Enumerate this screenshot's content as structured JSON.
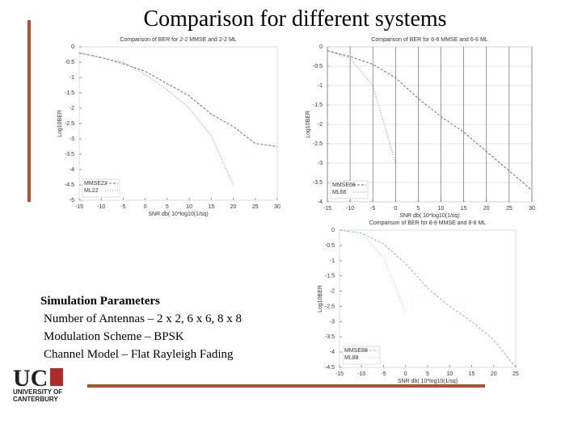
{
  "slide": {
    "title": "Comparison for different systems",
    "params_heading": "Simulation Parameters",
    "params": [
      "Number of Antennas – 2 x 2, 6 x 6, 8 x 8",
      "Modulation Scheme – BPSK",
      "Channel Model – Flat Rayleigh Fading"
    ],
    "logo": {
      "mark": "UC",
      "name": [
        "UNIVERSITY OF",
        "CANTERBURY"
      ]
    }
  },
  "chart_data": [
    {
      "type": "line",
      "title": "Comparison of BER for 2-2 MMSE and 2-2 ML",
      "xlabel": "SNR db( 10*log10(1/sq)",
      "ylabel": "Log10BER",
      "x": [
        -15,
        -10,
        -5,
        0,
        5,
        10,
        15,
        20,
        25,
        30
      ],
      "series": [
        {
          "name": "MMSE22",
          "color": "#5a6fb0",
          "values": [
            -0.2,
            -0.35,
            -0.55,
            -0.8,
            -1.2,
            -1.6,
            -2.2,
            -2.6,
            -3.15,
            -3.25
          ]
        },
        {
          "name": "ML22",
          "color": "#7a8ac0",
          "values": [
            -0.2,
            -0.35,
            -0.5,
            -0.9,
            -1.4,
            -2.0,
            -2.9,
            -4.5,
            null,
            null
          ]
        }
      ],
      "xlim": [
        -15,
        30
      ],
      "ylim": [
        -5,
        0
      ],
      "xticks": [
        -15,
        -10,
        -5,
        0,
        5,
        10,
        15,
        20,
        25,
        30
      ],
      "yticks": [
        0,
        -0.5,
        -1,
        -1.5,
        -2,
        -2.5,
        -3,
        -3.5,
        -4,
        -4.5,
        -5
      ],
      "grid": false,
      "legend": "lower left"
    },
    {
      "type": "line",
      "title": "Comparison of BER for 6-6 MMSE and 6-6 ML",
      "xlabel": "SNR db( 10*log10(1/sq)",
      "ylabel": "Log10BER",
      "x": [
        -15,
        -10,
        -5,
        0,
        5,
        10,
        15,
        20,
        25,
        30
      ],
      "series": [
        {
          "name": "MMSE66",
          "color": "#5a6fb0",
          "values": [
            -0.1,
            -0.25,
            -0.45,
            -0.8,
            -1.33,
            -1.8,
            -2.2,
            -2.7,
            -3.2,
            -3.7
          ]
        },
        {
          "name": "ML66",
          "color": "#7a8ac0",
          "values": [
            -0.1,
            -0.3,
            -1.0,
            -3.0,
            null,
            null,
            null,
            null,
            null,
            null
          ]
        }
      ],
      "xlim": [
        -15,
        30
      ],
      "ylim": [
        -4,
        0
      ],
      "xticks": [
        -15,
        -10,
        -5,
        0,
        5,
        10,
        15,
        20,
        25,
        30
      ],
      "yticks": [
        0,
        -0.5,
        -1,
        -1.5,
        -2,
        -2.5,
        -3,
        -3.5,
        -4
      ],
      "grid": true,
      "legend": "lower left"
    },
    {
      "type": "line",
      "title": "Comparison of BER for 8-8 MMSE and 8-8 ML",
      "xlabel": "SNR db( 10*log10(1/sq)",
      "ylabel": "Log10BER",
      "x": [
        -15,
        -10,
        -5,
        0,
        5,
        10,
        15,
        20,
        25
      ],
      "series": [
        {
          "name": "MMSE88",
          "color": "#88cc88",
          "values": [
            0,
            -0.1,
            -0.45,
            -1.1,
            -1.9,
            -2.5,
            -3.0,
            -3.6,
            -4.5
          ]
        },
        {
          "name": "ML88",
          "color": "#a0d8a0",
          "values": [
            0,
            -0.1,
            -0.9,
            -2.7,
            null,
            null,
            null,
            null,
            null
          ]
        }
      ],
      "xlim": [
        -15,
        25
      ],
      "ylim": [
        -4.5,
        0
      ],
      "xticks": [
        -15,
        -10,
        -5,
        0,
        5,
        10,
        15,
        20,
        25
      ],
      "yticks": [
        0,
        -0.5,
        -1,
        -1.5,
        -2,
        -2.5,
        -3,
        -3.5,
        -4,
        -4.5
      ],
      "grid": false,
      "legend": "lower left"
    }
  ]
}
